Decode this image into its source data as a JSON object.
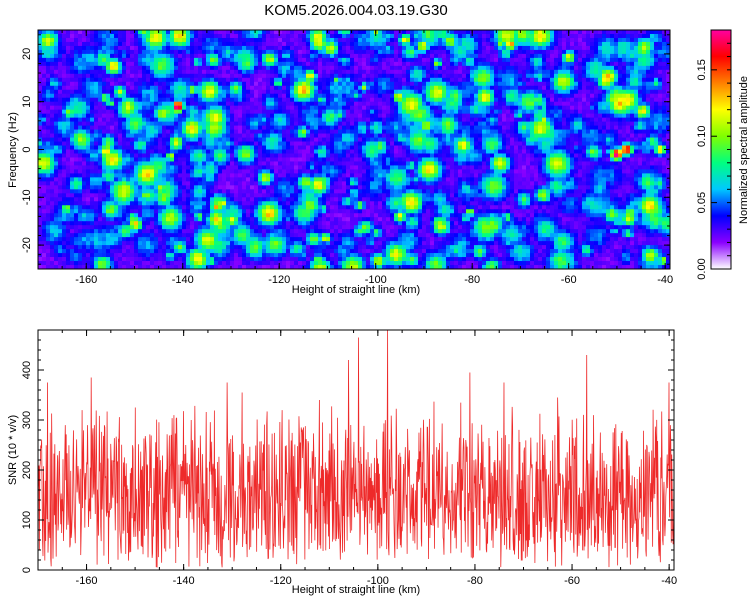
{
  "title": "KOM5.2026.004.03.19.G30",
  "chart_data": [
    {
      "type": "heatmap",
      "xlabel": "Height of straight line (km)",
      "ylabel": "Frequency (Hz)",
      "xlim": [
        -170,
        -39
      ],
      "ylim": [
        -25,
        25
      ],
      "xticks": [
        -160,
        -140,
        -120,
        -100,
        -80,
        -60,
        -40
      ],
      "yticks": [
        -20,
        -10,
        0,
        10,
        20
      ],
      "colorbar": {
        "label": "Normalized spectral amplitude",
        "range": [
          0,
          0.18
        ],
        "ticks": [
          0.0,
          0.05,
          0.1,
          0.15
        ],
        "tick_labels": [
          "0.00",
          "0.05",
          "0.10",
          "0.15"
        ],
        "colors": [
          "#ffffff",
          "#8a00ff",
          "#0000ff",
          "#00c8ff",
          "#00ff80",
          "#80ff00",
          "#ffff00",
          "#ff8000",
          "#ff0000",
          "#ff00a0"
        ]
      },
      "hotspots": [
        {
          "x": -141,
          "y": 9,
          "value": 0.17
        },
        {
          "x": -50,
          "y": -1,
          "value": 0.17
        },
        {
          "x": -48,
          "y": 0,
          "value": 0.16
        },
        {
          "x": -72,
          "y": 22,
          "value": 0.12
        },
        {
          "x": -133,
          "y": -12,
          "value": 0.11
        },
        {
          "x": -95,
          "y": -14,
          "value": 0.1
        },
        {
          "x": -41,
          "y": 0,
          "value": 0.1
        },
        {
          "x": -153,
          "y": 12,
          "value": 0.09
        }
      ]
    },
    {
      "type": "line",
      "xlabel": "Height of straight line (km)",
      "ylabel": "SNR (10 * v/v)",
      "xlim": [
        -170,
        -39
      ],
      "ylim": [
        0,
        480
      ],
      "xticks": [
        -160,
        -140,
        -120,
        -100,
        -80,
        -60,
        -40
      ],
      "yticks": [
        0,
        100,
        200,
        300,
        400
      ],
      "series": [
        {
          "color": "#ee2a2a",
          "baseline": 120,
          "band": [
            20,
            250
          ],
          "peaks": [
            {
              "x": -98,
              "y": 480
            },
            {
              "x": -104,
              "y": 465
            },
            {
              "x": -106,
              "y": 420
            },
            {
              "x": -57,
              "y": 430
            },
            {
              "x": -159,
              "y": 385
            },
            {
              "x": -168,
              "y": 375
            },
            {
              "x": -74,
              "y": 375
            },
            {
              "x": -81,
              "y": 395
            },
            {
              "x": -131,
              "y": 375
            },
            {
              "x": -40,
              "y": 375
            },
            {
              "x": -128,
              "y": 355
            },
            {
              "x": -63,
              "y": 345
            },
            {
              "x": -112,
              "y": 340
            },
            {
              "x": -150,
              "y": 325
            }
          ]
        }
      ]
    }
  ]
}
